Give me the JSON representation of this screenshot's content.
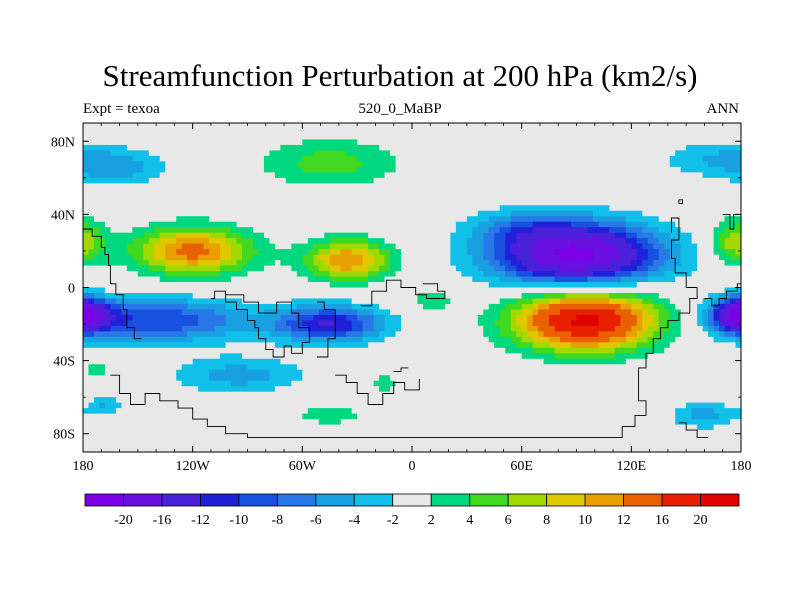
{
  "chart_data": {
    "type": "heatmap",
    "title": "Streamfunction Perturbation at 200 hPa (km2/s)",
    "left_label": "Expt = texoa",
    "center_label": "520_0_MaBP",
    "right_label": "ANN",
    "xlim": [
      -180,
      180
    ],
    "ylim": [
      -90,
      90
    ],
    "x_ticks": [
      {
        "value": -180,
        "label": "180"
      },
      {
        "value": -120,
        "label": "120W"
      },
      {
        "value": -60,
        "label": "60W"
      },
      {
        "value": 0,
        "label": "0"
      },
      {
        "value": 60,
        "label": "60E"
      },
      {
        "value": 120,
        "label": "120E"
      },
      {
        "value": 180,
        "label": "180"
      }
    ],
    "y_ticks": [
      {
        "value": 80,
        "label": "80N"
      },
      {
        "value": 40,
        "label": "40N"
      },
      {
        "value": 0,
        "label": "0"
      },
      {
        "value": -40,
        "label": "40S"
      },
      {
        "value": -80,
        "label": "80S"
      }
    ],
    "levels": [
      -20,
      -16,
      -12,
      -10,
      -8,
      -6,
      -4,
      -2,
      2,
      4,
      6,
      8,
      10,
      12,
      16,
      20
    ],
    "level_labels": [
      "-20",
      "-16",
      "-12",
      "-10",
      "-8",
      "-6",
      "-4",
      "-2",
      "2",
      "4",
      "6",
      "8",
      "10",
      "12",
      "16",
      "20"
    ],
    "colors": [
      "#7B00E8",
      "#6A10E0",
      "#4A20D8",
      "#2020D8",
      "#1850E0",
      "#2878E8",
      "#18A0E0",
      "#10C0E8",
      "#E8E8E8",
      "#00D880",
      "#40D820",
      "#A0D800",
      "#E0C800",
      "#E8A000",
      "#E86000",
      "#E82000",
      "#E00000"
    ],
    "features": [
      {
        "lon": -120,
        "lat": 20,
        "slon": 32,
        "slat": 13,
        "amp": 13
      },
      {
        "lon": -35,
        "lat": 15,
        "slon": 23,
        "slat": 11,
        "amp": 12
      },
      {
        "lon": -45,
        "lat": 68,
        "slon": 38,
        "slat": 13,
        "amp": 5
      },
      {
        "lon": 10,
        "lat": -7,
        "slon": 15,
        "slat": 8,
        "amp": 3
      },
      {
        "lon": 95,
        "lat": -18,
        "slon": 38,
        "slat": 16,
        "amp": 21
      },
      {
        "lon": 178,
        "lat": 25,
        "slon": 14,
        "slat": 12,
        "amp": 8
      },
      {
        "lon": -140,
        "lat": -18,
        "slon": 50,
        "slat": 12,
        "amp": -10
      },
      {
        "lon": -45,
        "lat": -20,
        "slon": 30,
        "slat": 10,
        "amp": -12
      },
      {
        "lon": -180,
        "lat": -15,
        "slon": 16,
        "slat": 9,
        "amp": -12
      },
      {
        "lon": -95,
        "lat": -48,
        "slon": 36,
        "slat": 10,
        "amp": -5
      },
      {
        "lon": -160,
        "lat": 65,
        "slon": 26,
        "slat": 10,
        "amp": -4
      },
      {
        "lon": 90,
        "lat": 18,
        "slon": 45,
        "slat": 17,
        "amp": -21
      },
      {
        "lon": 60,
        "lat": 33,
        "slon": 30,
        "slat": 10,
        "amp": -4
      },
      {
        "lon": 170,
        "lat": 70,
        "slon": 35,
        "slat": 10,
        "amp": -4
      },
      {
        "lon": 178,
        "lat": -15,
        "slon": 12,
        "slat": 9,
        "amp": -8
      },
      {
        "lon": 160,
        "lat": -70,
        "slon": 18,
        "slat": 7,
        "amp": -5
      },
      {
        "lon": -168,
        "lat": -65,
        "slon": 10,
        "slat": 6,
        "amp": -4
      },
      {
        "lon": -45,
        "lat": -70,
        "slon": 22,
        "slat": 5,
        "amp": 3.5
      },
      {
        "lon": -15,
        "lat": -52,
        "slon": 7,
        "slat": 5,
        "amp": 3.5
      },
      {
        "lon": -173,
        "lat": -45,
        "slon": 6,
        "slat": 5,
        "amp": 3.5
      }
    ]
  }
}
